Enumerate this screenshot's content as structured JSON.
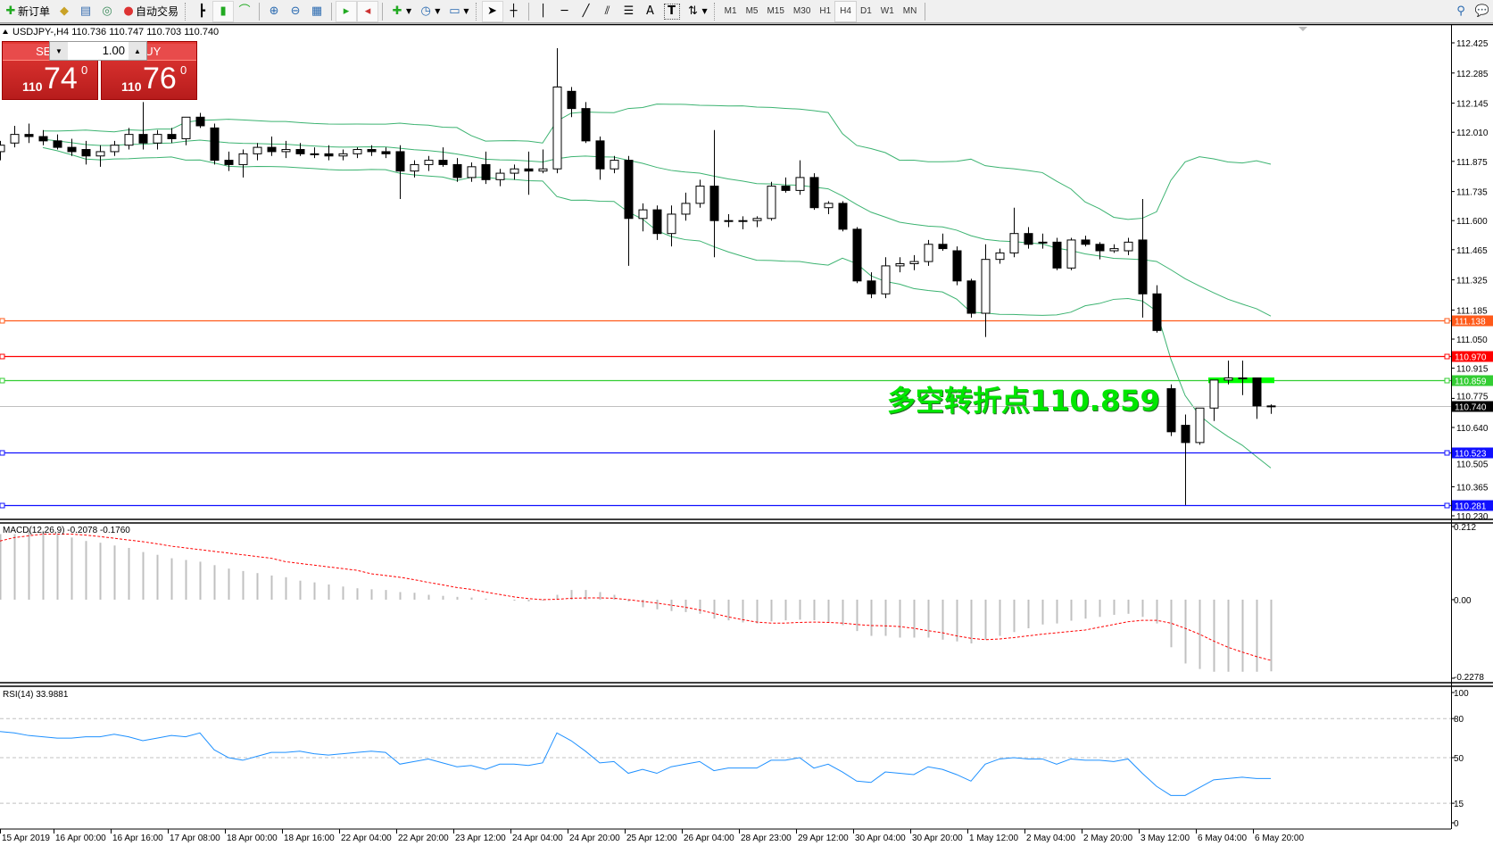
{
  "toolbar": {
    "new_order": "新订单",
    "auto_trading": "自动交易",
    "timeframes": [
      "M1",
      "M5",
      "M15",
      "M30",
      "H1",
      "H4",
      "D1",
      "W1",
      "MN"
    ],
    "active_timeframe": "H4",
    "tools": [
      "cursor-icon",
      "crosshair-icon",
      "vertical-line-icon",
      "horizontal-line-icon",
      "trendline-icon",
      "channel-icon",
      "fibonacci-icon",
      "text-icon",
      "label-icon",
      "arrows-icon"
    ],
    "text_tool": "A",
    "label_tool": "T"
  },
  "trade_panel": {
    "sell_label": "SELL",
    "buy_label": "BUY",
    "volume": "1.00",
    "sell_prefix": "110",
    "sell_big": "74",
    "sell_sup": "0",
    "buy_prefix": "110",
    "buy_big": "76",
    "buy_sup": "0",
    "color": "#d32f2f"
  },
  "chart_data": {
    "type": "candlestick",
    "header": "USDJPY-,H4  110.736 110.747 110.703 110.740",
    "price_ticks": [
      "112.425",
      "112.285",
      "112.145",
      "112.010",
      "111.875",
      "111.735",
      "111.600",
      "111.465",
      "111.325",
      "111.185",
      "111.050",
      "110.915",
      "110.775",
      "110.640",
      "110.505",
      "110.365",
      "110.230"
    ],
    "ylim": [
      110.23,
      112.425
    ],
    "date_labels": [
      "15 Apr 2019",
      "16 Apr 00:00",
      "16 Apr 16:00",
      "17 Apr 08:00",
      "18 Apr 00:00",
      "18 Apr 16:00",
      "22 Apr 04:00",
      "22 Apr 20:00",
      "23 Apr 12:00",
      "24 Apr 04:00",
      "24 Apr 20:00",
      "25 Apr 12:00",
      "26 Apr 04:00",
      "28 Apr 23:00",
      "29 Apr 12:00",
      "30 Apr 04:00",
      "30 Apr 20:00",
      "1 May 12:00",
      "2 May 04:00",
      "2 May 20:00",
      "3 May 12:00",
      "6 May 04:00",
      "6 May 20:00"
    ],
    "candles": [
      [
        111.92,
        111.97,
        111.88,
        111.95
      ],
      [
        111.96,
        112.04,
        111.94,
        112.0
      ],
      [
        112.0,
        112.05,
        111.96,
        111.99
      ],
      [
        111.99,
        112.02,
        111.95,
        111.97
      ],
      [
        111.97,
        112.0,
        111.93,
        111.94
      ],
      [
        111.94,
        111.98,
        111.9,
        111.92
      ],
      [
        111.93,
        111.97,
        111.86,
        111.9
      ],
      [
        111.9,
        111.95,
        111.85,
        111.92
      ],
      [
        111.92,
        111.97,
        111.9,
        111.95
      ],
      [
        111.95,
        112.03,
        111.93,
        112.0
      ],
      [
        112.0,
        112.15,
        111.93,
        111.96
      ],
      [
        111.96,
        112.02,
        111.93,
        112.0
      ],
      [
        112.0,
        112.03,
        111.96,
        111.98
      ],
      [
        111.98,
        112.06,
        111.95,
        112.08
      ],
      [
        112.08,
        112.1,
        112.03,
        112.04
      ],
      [
        112.03,
        112.05,
        111.86,
        111.88
      ],
      [
        111.88,
        111.92,
        111.83,
        111.86
      ],
      [
        111.86,
        111.93,
        111.8,
        111.91
      ],
      [
        111.91,
        111.96,
        111.88,
        111.94
      ],
      [
        111.94,
        111.99,
        111.9,
        111.92
      ],
      [
        111.92,
        111.97,
        111.89,
        111.93
      ],
      [
        111.93,
        111.96,
        111.9,
        111.91
      ],
      [
        111.91,
        111.94,
        111.89,
        111.91
      ],
      [
        111.91,
        111.95,
        111.88,
        111.9
      ],
      [
        111.9,
        111.93,
        111.88,
        111.91
      ],
      [
        111.91,
        111.94,
        111.89,
        111.93
      ],
      [
        111.93,
        111.95,
        111.9,
        111.92
      ],
      [
        111.92,
        111.94,
        111.89,
        111.91
      ],
      [
        111.92,
        111.95,
        111.7,
        111.83
      ],
      [
        111.83,
        111.88,
        111.8,
        111.86
      ],
      [
        111.86,
        111.9,
        111.83,
        111.88
      ],
      [
        111.88,
        111.94,
        111.85,
        111.86
      ],
      [
        111.86,
        111.89,
        111.78,
        111.8
      ],
      [
        111.8,
        111.87,
        111.78,
        111.85
      ],
      [
        111.86,
        111.92,
        111.77,
        111.79
      ],
      [
        111.79,
        111.84,
        111.76,
        111.82
      ],
      [
        111.82,
        111.86,
        111.79,
        111.84
      ],
      [
        111.84,
        111.92,
        111.72,
        111.83
      ],
      [
        111.83,
        111.93,
        111.82,
        111.84
      ],
      [
        111.84,
        112.4,
        111.82,
        112.22
      ],
      [
        112.2,
        112.22,
        112.08,
        112.12
      ],
      [
        112.12,
        112.15,
        111.96,
        111.97
      ],
      [
        111.97,
        111.99,
        111.79,
        111.84
      ],
      [
        111.84,
        111.9,
        111.82,
        111.88
      ],
      [
        111.88,
        111.9,
        111.39,
        111.61
      ],
      [
        111.61,
        111.68,
        111.55,
        111.65
      ],
      [
        111.65,
        111.67,
        111.51,
        111.54
      ],
      [
        111.54,
        111.67,
        111.48,
        111.63
      ],
      [
        111.63,
        111.73,
        111.6,
        111.68
      ],
      [
        111.68,
        111.79,
        111.66,
        111.76
      ],
      [
        111.76,
        112.02,
        111.43,
        111.6
      ],
      [
        111.6,
        111.63,
        111.57,
        111.6
      ],
      [
        111.6,
        111.62,
        111.56,
        111.6
      ],
      [
        111.6,
        111.62,
        111.57,
        111.61
      ],
      [
        111.61,
        111.78,
        111.6,
        111.76
      ],
      [
        111.76,
        111.8,
        111.73,
        111.74
      ],
      [
        111.74,
        111.88,
        111.72,
        111.8
      ],
      [
        111.8,
        111.82,
        111.65,
        111.66
      ],
      [
        111.66,
        111.69,
        111.63,
        111.68
      ],
      [
        111.68,
        111.69,
        111.55,
        111.56
      ],
      [
        111.56,
        111.57,
        111.31,
        111.32
      ],
      [
        111.32,
        111.36,
        111.24,
        111.26
      ],
      [
        111.26,
        111.43,
        111.24,
        111.39
      ],
      [
        111.39,
        111.43,
        111.36,
        111.4
      ],
      [
        111.4,
        111.44,
        111.37,
        111.41
      ],
      [
        111.41,
        111.51,
        111.39,
        111.49
      ],
      [
        111.49,
        111.54,
        111.46,
        111.47
      ],
      [
        111.46,
        111.48,
        111.3,
        111.32
      ],
      [
        111.32,
        111.33,
        111.15,
        111.17
      ],
      [
        111.17,
        111.49,
        111.06,
        111.42
      ],
      [
        111.42,
        111.47,
        111.4,
        111.45
      ],
      [
        111.45,
        111.66,
        111.43,
        111.54
      ],
      [
        111.54,
        111.57,
        111.47,
        111.49
      ],
      [
        111.5,
        111.54,
        111.47,
        111.5
      ],
      [
        111.5,
        111.52,
        111.37,
        111.38
      ],
      [
        111.38,
        111.52,
        111.37,
        111.51
      ],
      [
        111.51,
        111.53,
        111.48,
        111.49
      ],
      [
        111.49,
        111.5,
        111.42,
        111.46
      ],
      [
        111.46,
        111.49,
        111.45,
        111.47
      ],
      [
        111.46,
        111.52,
        111.44,
        111.5
      ],
      [
        111.51,
        111.7,
        111.15,
        111.26
      ],
      [
        111.26,
        111.3,
        111.08,
        111.09
      ],
      [
        110.82,
        110.84,
        110.6,
        110.62
      ],
      [
        110.65,
        110.7,
        110.28,
        110.57
      ],
      [
        110.57,
        110.73,
        110.56,
        110.73
      ],
      [
        110.73,
        110.86,
        110.67,
        110.86
      ],
      [
        110.86,
        110.95,
        110.84,
        110.87
      ],
      [
        110.87,
        110.95,
        110.79,
        110.87
      ],
      [
        110.87,
        110.87,
        110.68,
        110.74
      ],
      [
        110.736,
        110.747,
        110.703,
        110.74
      ]
    ],
    "bollinger": {
      "period": 20,
      "deviation": 2,
      "color": "#3cb371"
    },
    "levels": [
      {
        "label": "111.138",
        "color": "#ff5a1a"
      },
      {
        "label": "110.970",
        "color": "#ff0000"
      },
      {
        "label": "110.859",
        "color": "#32cd32"
      },
      {
        "label": "110.740",
        "color": "#000000",
        "line_color": "#c0c0c0"
      },
      {
        "label": "110.523",
        "color": "#1010ff"
      },
      {
        "label": "110.281",
        "color": "#1010ff"
      }
    ],
    "zone": {
      "top": 110.872,
      "bottom": 110.846,
      "from_index": 85,
      "to_index": 89,
      "color": "#00ff00"
    },
    "annotation": {
      "text": "多空转折点110.859",
      "color": "#00e600"
    },
    "macd": {
      "label": "MACD(12,26,9) -0.2078 -0.1760",
      "axis_labels": [
        "0.212",
        "0.00",
        "-0.2278"
      ],
      "ylim": [
        -0.2278,
        0.212
      ],
      "histogram": [
        0.19,
        0.19,
        0.2,
        0.2,
        0.19,
        0.18,
        0.17,
        0.165,
        0.157,
        0.15,
        0.138,
        0.13,
        0.12,
        0.115,
        0.11,
        0.1,
        0.09,
        0.083,
        0.077,
        0.07,
        0.065,
        0.055,
        0.05,
        0.044,
        0.038,
        0.033,
        0.03,
        0.028,
        0.022,
        0.02,
        0.014,
        0.011,
        0.008,
        0.006,
        0.003,
        0.0,
        -0.003,
        -0.005,
        -0.003,
        0.014,
        0.028,
        0.028,
        0.022,
        0.014,
        -0.005,
        -0.022,
        -0.028,
        -0.033,
        -0.036,
        -0.041,
        -0.055,
        -0.06,
        -0.066,
        -0.069,
        -0.063,
        -0.06,
        -0.058,
        -0.06,
        -0.066,
        -0.074,
        -0.091,
        -0.105,
        -0.105,
        -0.11,
        -0.11,
        -0.11,
        -0.116,
        -0.121,
        -0.127,
        -0.116,
        -0.105,
        -0.094,
        -0.083,
        -0.072,
        -0.069,
        -0.061,
        -0.055,
        -0.05,
        -0.044,
        -0.041,
        -0.05,
        -0.069,
        -0.138,
        -0.185,
        -0.201,
        -0.209,
        -0.209,
        -0.209,
        -0.209,
        -0.2078
      ],
      "signal": [
        0.17,
        0.18,
        0.185,
        0.19,
        0.19,
        0.19,
        0.187,
        0.183,
        0.178,
        0.173,
        0.168,
        0.162,
        0.155,
        0.15,
        0.145,
        0.14,
        0.135,
        0.13,
        0.125,
        0.12,
        0.11,
        0.105,
        0.1,
        0.095,
        0.09,
        0.085,
        0.075,
        0.07,
        0.065,
        0.058,
        0.05,
        0.043,
        0.035,
        0.03,
        0.022,
        0.015,
        0.008,
        0.003,
        0.0,
        0.001,
        0.004,
        0.005,
        0.005,
        0.004,
        0.0,
        -0.005,
        -0.01,
        -0.016,
        -0.022,
        -0.03,
        -0.04,
        -0.05,
        -0.058,
        -0.065,
        -0.068,
        -0.068,
        -0.066,
        -0.065,
        -0.066,
        -0.068,
        -0.072,
        -0.075,
        -0.076,
        -0.078,
        -0.083,
        -0.09,
        -0.096,
        -0.105,
        -0.112,
        -0.116,
        -0.114,
        -0.11,
        -0.105,
        -0.1,
        -0.096,
        -0.092,
        -0.088,
        -0.08,
        -0.072,
        -0.064,
        -0.06,
        -0.06,
        -0.068,
        -0.083,
        -0.1,
        -0.12,
        -0.138,
        -0.152,
        -0.165,
        -0.176
      ],
      "histogram_color": "#c0c0c0",
      "signal_color": "#ff0000"
    },
    "rsi": {
      "label": "RSI(14) 33.9881",
      "axis_labels": [
        "100",
        "80",
        "50",
        "15",
        "0"
      ],
      "levels": [
        80,
        50,
        15
      ],
      "ylim": [
        0,
        100
      ],
      "color": "#1e90ff",
      "values": [
        70,
        69,
        67,
        66,
        65,
        65,
        66,
        66,
        68,
        66,
        63,
        65,
        67,
        66,
        69,
        56,
        50,
        48,
        51,
        54,
        54,
        55,
        53,
        52,
        53,
        54,
        55,
        54,
        45,
        47,
        49,
        46,
        43,
        44,
        41,
        45,
        45,
        44,
        46,
        69,
        63,
        55,
        46,
        47,
        38,
        41,
        38,
        43,
        45,
        47,
        40,
        42,
        42,
        42,
        48,
        48,
        50,
        42,
        45,
        39,
        32,
        31,
        39,
        38,
        37,
        43,
        41,
        37,
        32,
        45,
        49,
        50,
        49,
        49,
        45,
        49,
        48,
        48,
        47,
        49,
        38,
        28,
        21,
        21,
        27,
        33,
        34,
        35,
        34,
        34
      ]
    }
  }
}
